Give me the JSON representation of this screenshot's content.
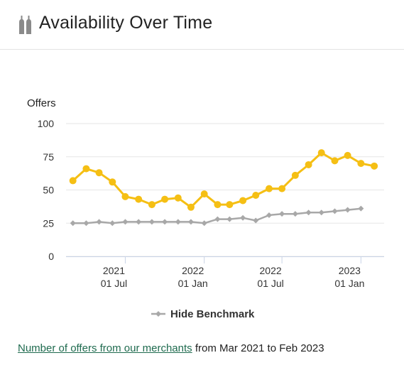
{
  "header": {
    "title": "Availability Over Time",
    "icon": "wine-bottles-icon"
  },
  "chart_data": {
    "type": "line",
    "title": "",
    "ylabel": "Offers",
    "xlabel": "",
    "ylim": [
      0,
      100
    ],
    "yticks": [
      0,
      25,
      50,
      75,
      100
    ],
    "xlim": [
      "2021-02-13",
      "2023-02-24"
    ],
    "xticks": [
      {
        "date": "2021-07-01",
        "label_top": "2021",
        "label_bottom": "01 Jul"
      },
      {
        "date": "2022-01-01",
        "label_top": "2022",
        "label_bottom": "01 Jan"
      },
      {
        "date": "2022-07-01",
        "label_top": "2022",
        "label_bottom": "01 Jul"
      },
      {
        "date": "2023-01-01",
        "label_top": "2023",
        "label_bottom": "01 Jan"
      }
    ],
    "x": [
      "2021-03-01",
      "2021-04-01",
      "2021-05-01",
      "2021-06-01",
      "2021-07-01",
      "2021-08-01",
      "2021-09-01",
      "2021-10-01",
      "2021-11-01",
      "2021-12-01",
      "2022-01-01",
      "2022-02-01",
      "2022-03-01",
      "2022-04-01",
      "2022-05-01",
      "2022-06-01",
      "2022-07-01",
      "2022-08-01",
      "2022-09-01",
      "2022-10-01",
      "2022-11-01",
      "2022-12-01",
      "2023-01-01",
      "2023-02-01"
    ],
    "series": [
      {
        "color": "#f5bf14",
        "values": [
          57,
          66,
          63,
          56,
          45,
          43,
          39,
          43,
          44,
          37,
          47,
          39,
          39,
          42,
          46,
          51,
          51,
          61,
          69,
          78,
          72,
          76,
          70,
          68
        ]
      },
      {
        "name": "Hide Benchmark",
        "color": "#a8a8a8",
        "values": [
          25,
          25,
          26,
          25,
          26,
          26,
          26,
          26,
          26,
          26,
          25,
          28,
          28,
          29,
          27,
          31,
          32,
          32,
          33,
          33,
          34,
          35,
          36,
          null
        ]
      }
    ],
    "grid": true,
    "legend": "bottom-center"
  },
  "legend": {
    "benchmark_label": "Hide Benchmark"
  },
  "footer": {
    "link_text": "Number of offers from our merchants",
    "suffix": " from Mar 2021 to Feb 2023"
  }
}
